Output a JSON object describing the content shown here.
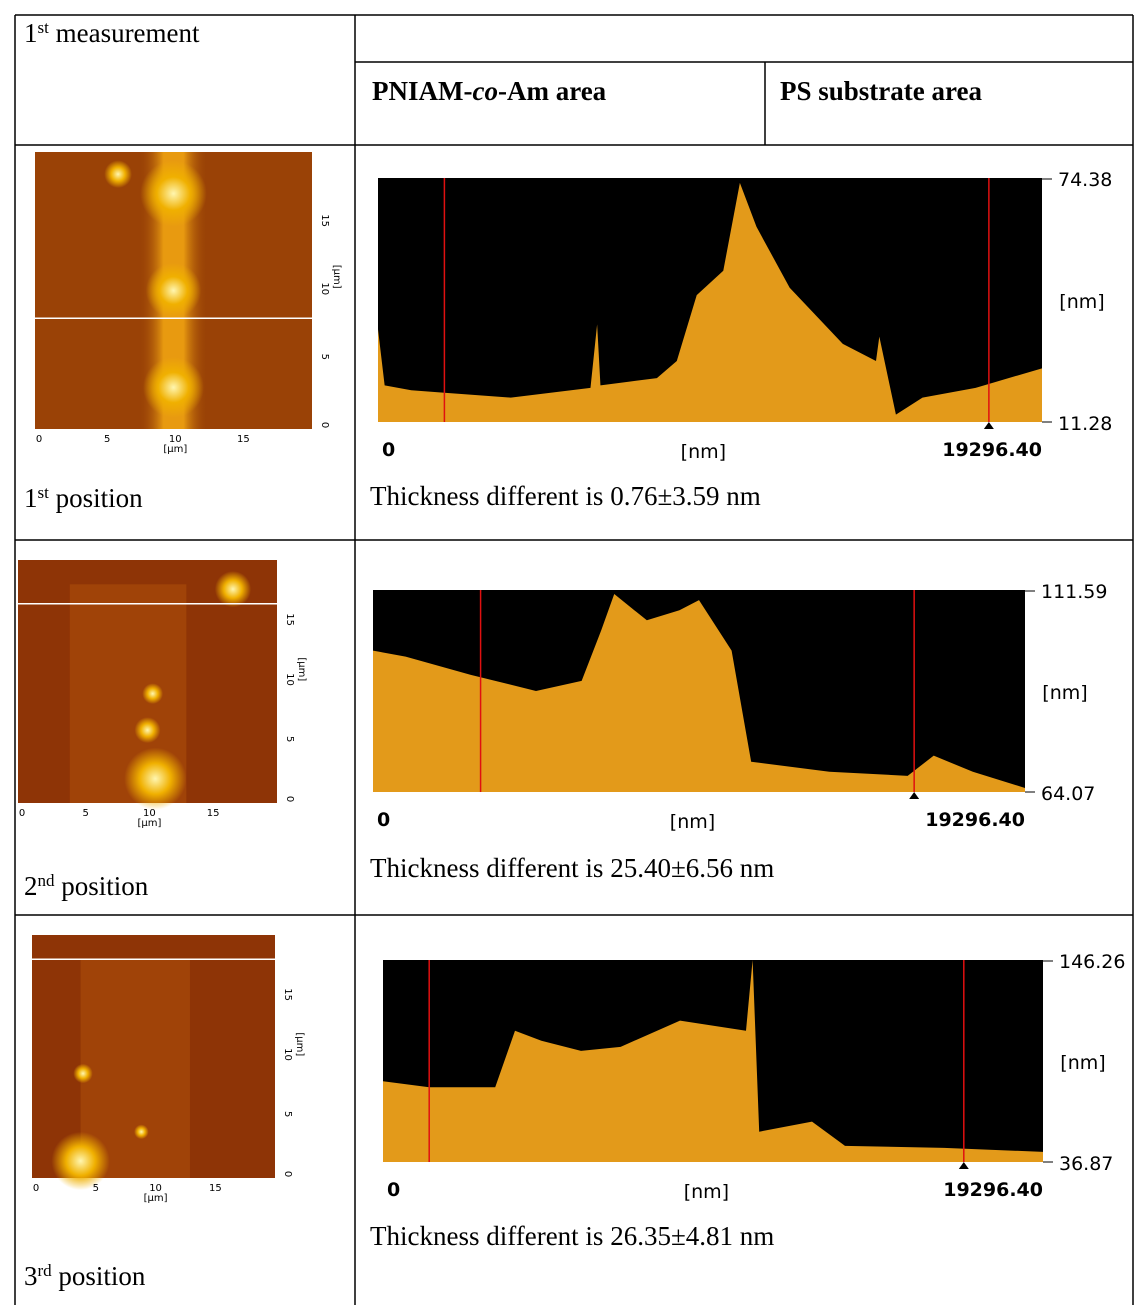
{
  "header": {
    "measurement": {
      "num": "1",
      "sup": "st",
      "text": " measurement"
    },
    "col1": [
      "PNIAM-",
      "co",
      "-Am area"
    ],
    "col2": "PS substrate area"
  },
  "afm_axis": {
    "ticks": [
      "0",
      "5",
      "10",
      "15"
    ],
    "unit": "[µm]"
  },
  "rows": [
    {
      "position": {
        "num": "1",
        "sup": "st",
        "text": " position"
      },
      "profile": {
        "y_max": "74.38",
        "y_unit": "[nm]",
        "y_min": "11.28",
        "x_min": "0",
        "x_unit": "[nm]",
        "x_max": "19296.40"
      },
      "caption": "Thickness different is 0.76±3.59 nm"
    },
    {
      "position": {
        "num": "2",
        "sup": "nd",
        "text": " position"
      },
      "profile": {
        "y_max": "111.59",
        "y_unit": "[nm]",
        "y_min": "64.07",
        "x_min": "0",
        "x_unit": "[nm]",
        "x_max": "19296.40"
      },
      "caption": "Thickness different is 25.40±6.56 nm"
    },
    {
      "position": {
        "num": "3",
        "sup": "rd",
        "text": " position"
      },
      "profile": {
        "y_max": "146.26",
        "y_unit": "[nm]",
        "y_min": "36.87",
        "x_min": "0",
        "x_unit": "[nm]",
        "x_max": "19296.40"
      },
      "caption": "Thickness different is 26.35±4.81 nm"
    }
  ]
}
